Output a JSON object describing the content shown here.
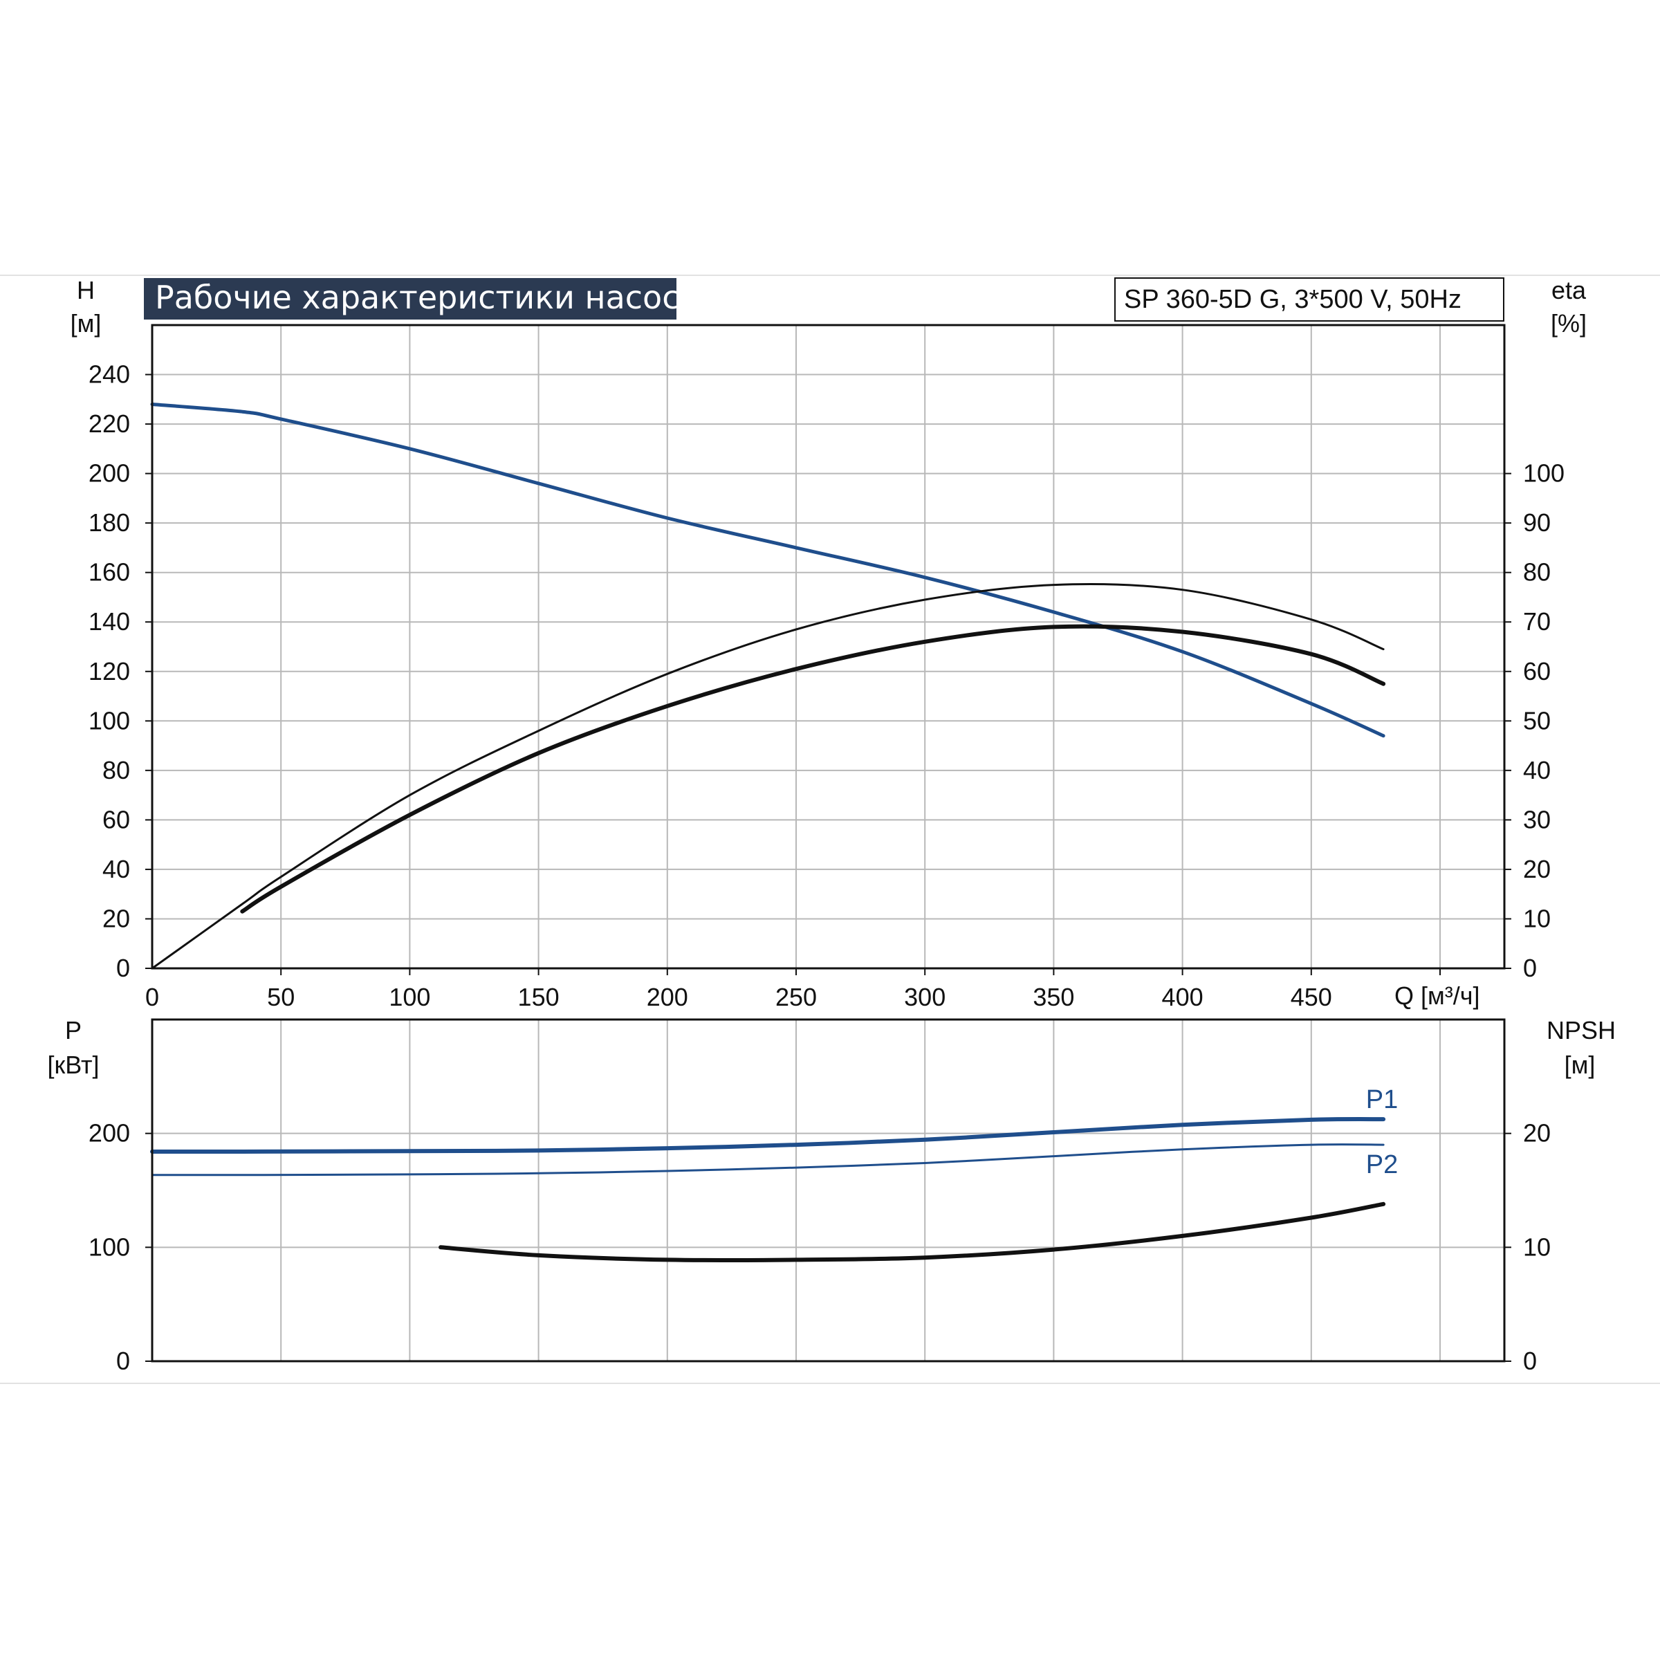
{
  "header": {
    "title": "Рабочие характеристики насоса",
    "model": "SP 360-5D G, 3*500 V, 50Hz"
  },
  "colors": {
    "blue": "#1f4e8c",
    "black": "#111111",
    "grid": "#b8b8b8",
    "title_bg": "#2b3a52"
  },
  "chart_data": [
    {
      "type": "line",
      "title": "Рабочие характеристики насоса",
      "xlabel": "Q [м³/ч]",
      "ylabel_left_line1": "H",
      "ylabel_left_line2": "[м]",
      "ylabel_right_line1": "eta",
      "ylabel_right_line2": "[%]",
      "xlim": [
        0,
        525
      ],
      "ylim_left": [
        0,
        260
      ],
      "ylim_right": [
        0,
        130
      ],
      "x_ticks": [
        0,
        50,
        100,
        150,
        200,
        250,
        300,
        350,
        400,
        450
      ],
      "y_ticks_left": [
        0,
        20,
        40,
        60,
        80,
        100,
        120,
        140,
        160,
        180,
        200,
        220,
        240
      ],
      "y_ticks_right": [
        0,
        10,
        20,
        30,
        40,
        50,
        60,
        70,
        80,
        90,
        100
      ],
      "grid": true,
      "series": [
        {
          "axis": "left",
          "color": "blue",
          "x": [
            0,
            35,
            50,
            100,
            150,
            200,
            250,
            300,
            350,
            400,
            450,
            478
          ],
          "values": [
            228,
            225,
            222,
            210,
            196,
            182,
            170,
            158,
            144,
            128,
            107,
            94
          ]
        },
        {
          "axis": "right",
          "color": "black",
          "x": [
            0,
            35,
            50,
            100,
            150,
            200,
            250,
            300,
            350,
            400,
            450,
            478
          ],
          "values": [
            0,
            13,
            18.5,
            35,
            48,
            59.5,
            68.5,
            74.5,
            77.5,
            76.5,
            70.5,
            64.5
          ]
        },
        {
          "axis": "right",
          "color": "black",
          "x": [
            35,
            50,
            100,
            150,
            200,
            250,
            300,
            350,
            400,
            450,
            478
          ],
          "values": [
            11.5,
            16.5,
            31,
            43.5,
            53,
            60.5,
            66,
            69,
            68,
            63.5,
            57.5
          ]
        }
      ]
    },
    {
      "type": "line",
      "ylabel_left_line1": "P",
      "ylabel_left_line2": "[кВт]",
      "ylabel_right_line1": "NPSH",
      "ylabel_right_line2": "[м]",
      "xlim": [
        0,
        525
      ],
      "ylim_left": [
        0,
        300
      ],
      "ylim_right": [
        0,
        30
      ],
      "y_ticks_left": [
        0,
        100,
        200
      ],
      "y_ticks_right": [
        0,
        10,
        20
      ],
      "grid": true,
      "series": [
        {
          "name": "P1",
          "axis": "left",
          "color": "blue",
          "x": [
            0,
            35,
            100,
            150,
            200,
            250,
            300,
            350,
            400,
            450,
            478
          ],
          "values": [
            184,
            184,
            184.5,
            185,
            187,
            190,
            194.5,
            201,
            207.5,
            212,
            212.5
          ]
        },
        {
          "name": "P2",
          "axis": "left",
          "color": "blue",
          "x": [
            0,
            35,
            100,
            150,
            200,
            250,
            300,
            350,
            400,
            450,
            478
          ],
          "values": [
            163.5,
            163.5,
            164,
            165,
            167,
            170,
            174,
            180,
            186,
            190,
            190
          ]
        },
        {
          "axis": "right",
          "color": "black",
          "x": [
            112,
            150,
            200,
            250,
            300,
            350,
            400,
            450,
            478
          ],
          "values": [
            10,
            9.3,
            8.9,
            8.9,
            9.1,
            9.8,
            11.0,
            12.6,
            13.8
          ]
        }
      ]
    }
  ]
}
